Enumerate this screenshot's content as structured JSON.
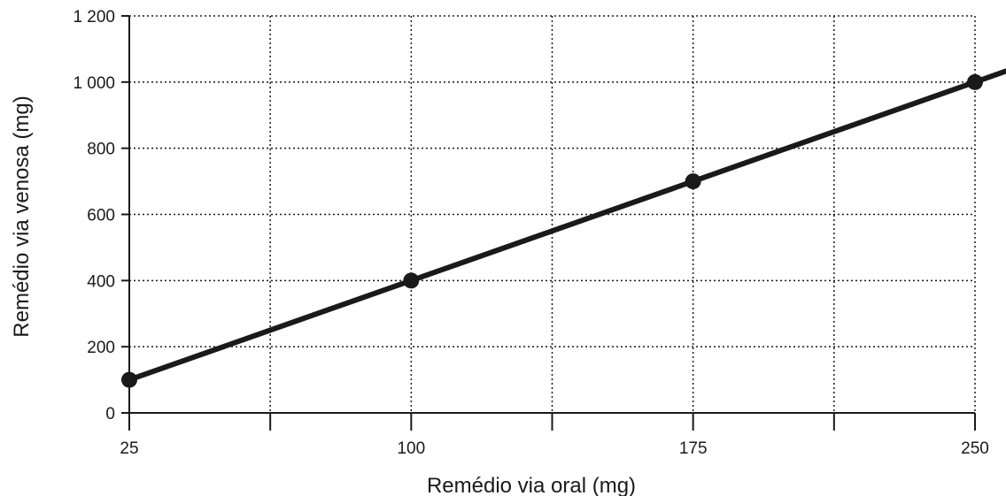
{
  "chart_data": {
    "type": "line",
    "title": "",
    "xlabel": "Remédio via oral (mg)",
    "ylabel": "Remédio via venosa (mg)",
    "xlim": [
      25,
      250
    ],
    "ylim": [
      0,
      1200
    ],
    "x_ticks": [
      25,
      100,
      175,
      250
    ],
    "x_tick_labels": [
      "25",
      "100",
      "175",
      "250"
    ],
    "x_minor_ticks": [
      62.5,
      137.5,
      212.5
    ],
    "y_ticks": [
      0,
      200,
      400,
      600,
      800,
      1000,
      1200
    ],
    "y_tick_labels": [
      "0",
      "200",
      "400",
      "600",
      "800",
      "1 000",
      "1 200"
    ],
    "grid": true,
    "line_extends_beyond": 265,
    "series": [
      {
        "x": [
          25,
          100,
          175,
          250
        ],
        "y": [
          100,
          400,
          700,
          1000
        ],
        "color": "#1a1a1a"
      }
    ]
  }
}
